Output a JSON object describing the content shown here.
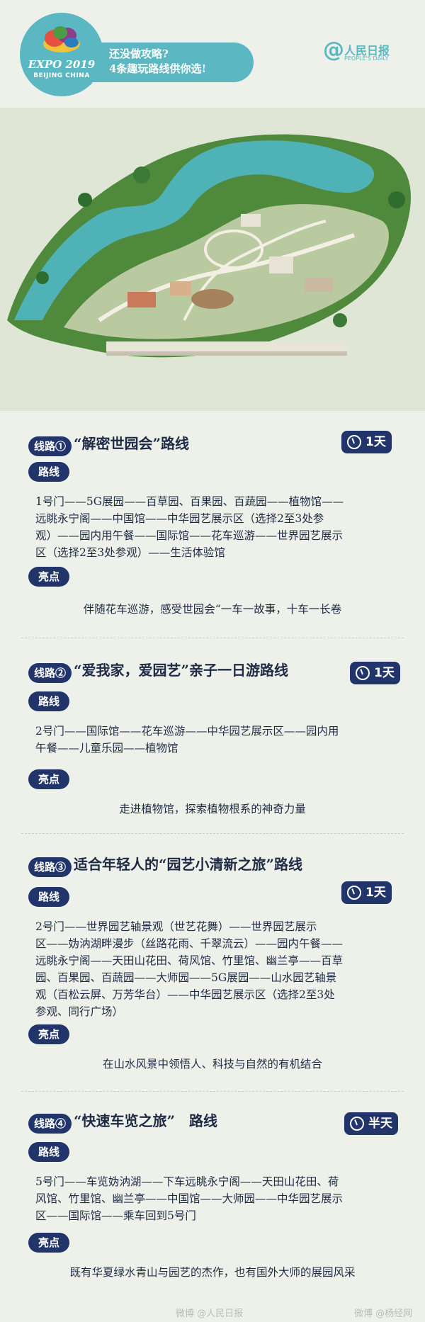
{
  "header": {
    "logo_main": "EXPO 2019",
    "logo_sub": "BEIJING CHINA",
    "promo_line1": "还没做攻略?",
    "promo_line2": "4条趣玩路线供你选!",
    "paper_at": "@",
    "paper_name": "人民日报",
    "paper_sub": "PEOPLE'S DAILY",
    "brand_color": "#5bb7c2"
  },
  "map": {
    "icon": "park-map-illustration"
  },
  "routes": [
    {
      "tag": "线路①",
      "name": "“解密世园会”路线",
      "duration": "1天",
      "route_label": "路线",
      "route_lines": [
        "1号门——5G展园——百草园、百果园、百蔬园——植物馆——",
        "远眺永宁阁——中国馆——中华园艺展示区（选择2至3处参",
        "观）——园内用午餐——国际馆——花车巡游——世界园艺展示",
        "区（选择2至3处参观）——生活体验馆"
      ],
      "highlight_label": "亮点",
      "highlight": "伴随花车巡游，感受世园会“一车一故事，十车一长卷"
    },
    {
      "tag": "线路②",
      "name": "“爱我家，爱园艺”亲子一日游路线",
      "duration": "1天",
      "route_label": "路线",
      "route_lines": [
        "2号门——国际馆——花车巡游——中华园艺展示区——园内用",
        "午餐——儿童乐园——植物馆"
      ],
      "highlight_label": "亮点",
      "highlight": "走进植物馆，探索植物根系的神奇力量"
    },
    {
      "tag": "线路③",
      "name": "适合年轻人的“园艺小清新之旅”路线",
      "duration": "1天",
      "route_label": "路线",
      "route_lines": [
        "2号门——世界园艺轴景观（世艺花舞）——世界园艺展示",
        "区——妫汭湖畔漫步（丝路花雨、千翠流云）——园内午餐——",
        "远眺永宁阁——天田山花田、荷风馆、竹里馆、幽兰亭——百草",
        "园、百果园、百蔬园——大师园——5G展园——山水园艺轴景",
        "观（百松云屏、万芳华台）——中华园艺展示区（选择2至3处",
        "参观、同行广场）"
      ],
      "highlight_label": "亮点",
      "highlight": "在山水风景中领悟人、科技与自然的有机结合"
    },
    {
      "tag": "线路④",
      "name": "“快速车览之旅”　路线",
      "duration": "半天",
      "route_label": "路线",
      "route_lines": [
        "5号门——车览妫汭湖——下车远眺永宁阁——天田山花田、荷",
        "风馆、竹里馆、幽兰亭——中国馆——大师园——中华园艺展示",
        "区——国际馆——乘车回到5号门"
      ],
      "highlight_label": "亮点",
      "highlight": "既有华夏绿水青山与园艺的杰作，也有国外大师的展园风采"
    }
  ],
  "footer": {
    "watermark_left": "微博 @人民日报",
    "watermark_right": "微博 @杨经网"
  },
  "colors": {
    "navy": "#22356b",
    "teal": "#5bb7c2",
    "background": "#eef1ea"
  }
}
